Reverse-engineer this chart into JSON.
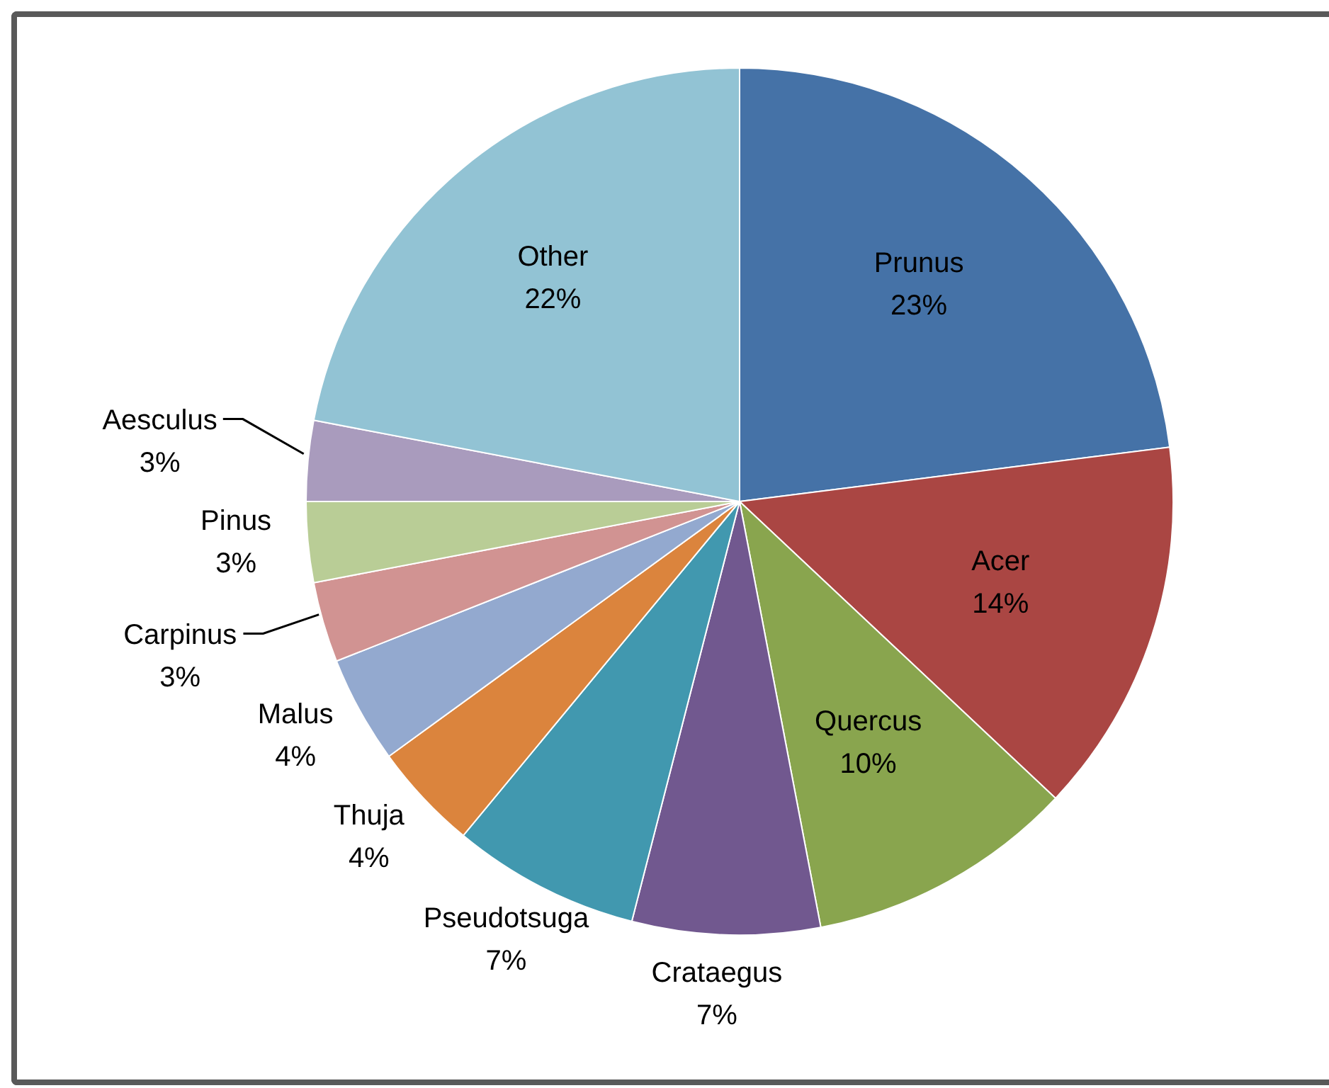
{
  "chart_data": {
    "type": "pie",
    "categories": [
      "Prunus",
      "Acer",
      "Quercus",
      "Crataegus",
      "Pseudotsuga",
      "Thuja",
      "Malus",
      "Carpinus",
      "Pinus",
      "Aesculus",
      "Other"
    ],
    "values": [
      23,
      14,
      10,
      7,
      7,
      4,
      4,
      3,
      3,
      3,
      22
    ],
    "value_labels": [
      "23%",
      "14%",
      "10%",
      "7%",
      "7%",
      "4%",
      "4%",
      "3%",
      "3%",
      "3%",
      "22%"
    ],
    "colors": [
      "#4572a7",
      "#aa4643",
      "#89a54e",
      "#71588f",
      "#4198af",
      "#db843d",
      "#93a9cf",
      "#d19392",
      "#b9cd96",
      "#a99bbd",
      "#92c3d4"
    ]
  }
}
